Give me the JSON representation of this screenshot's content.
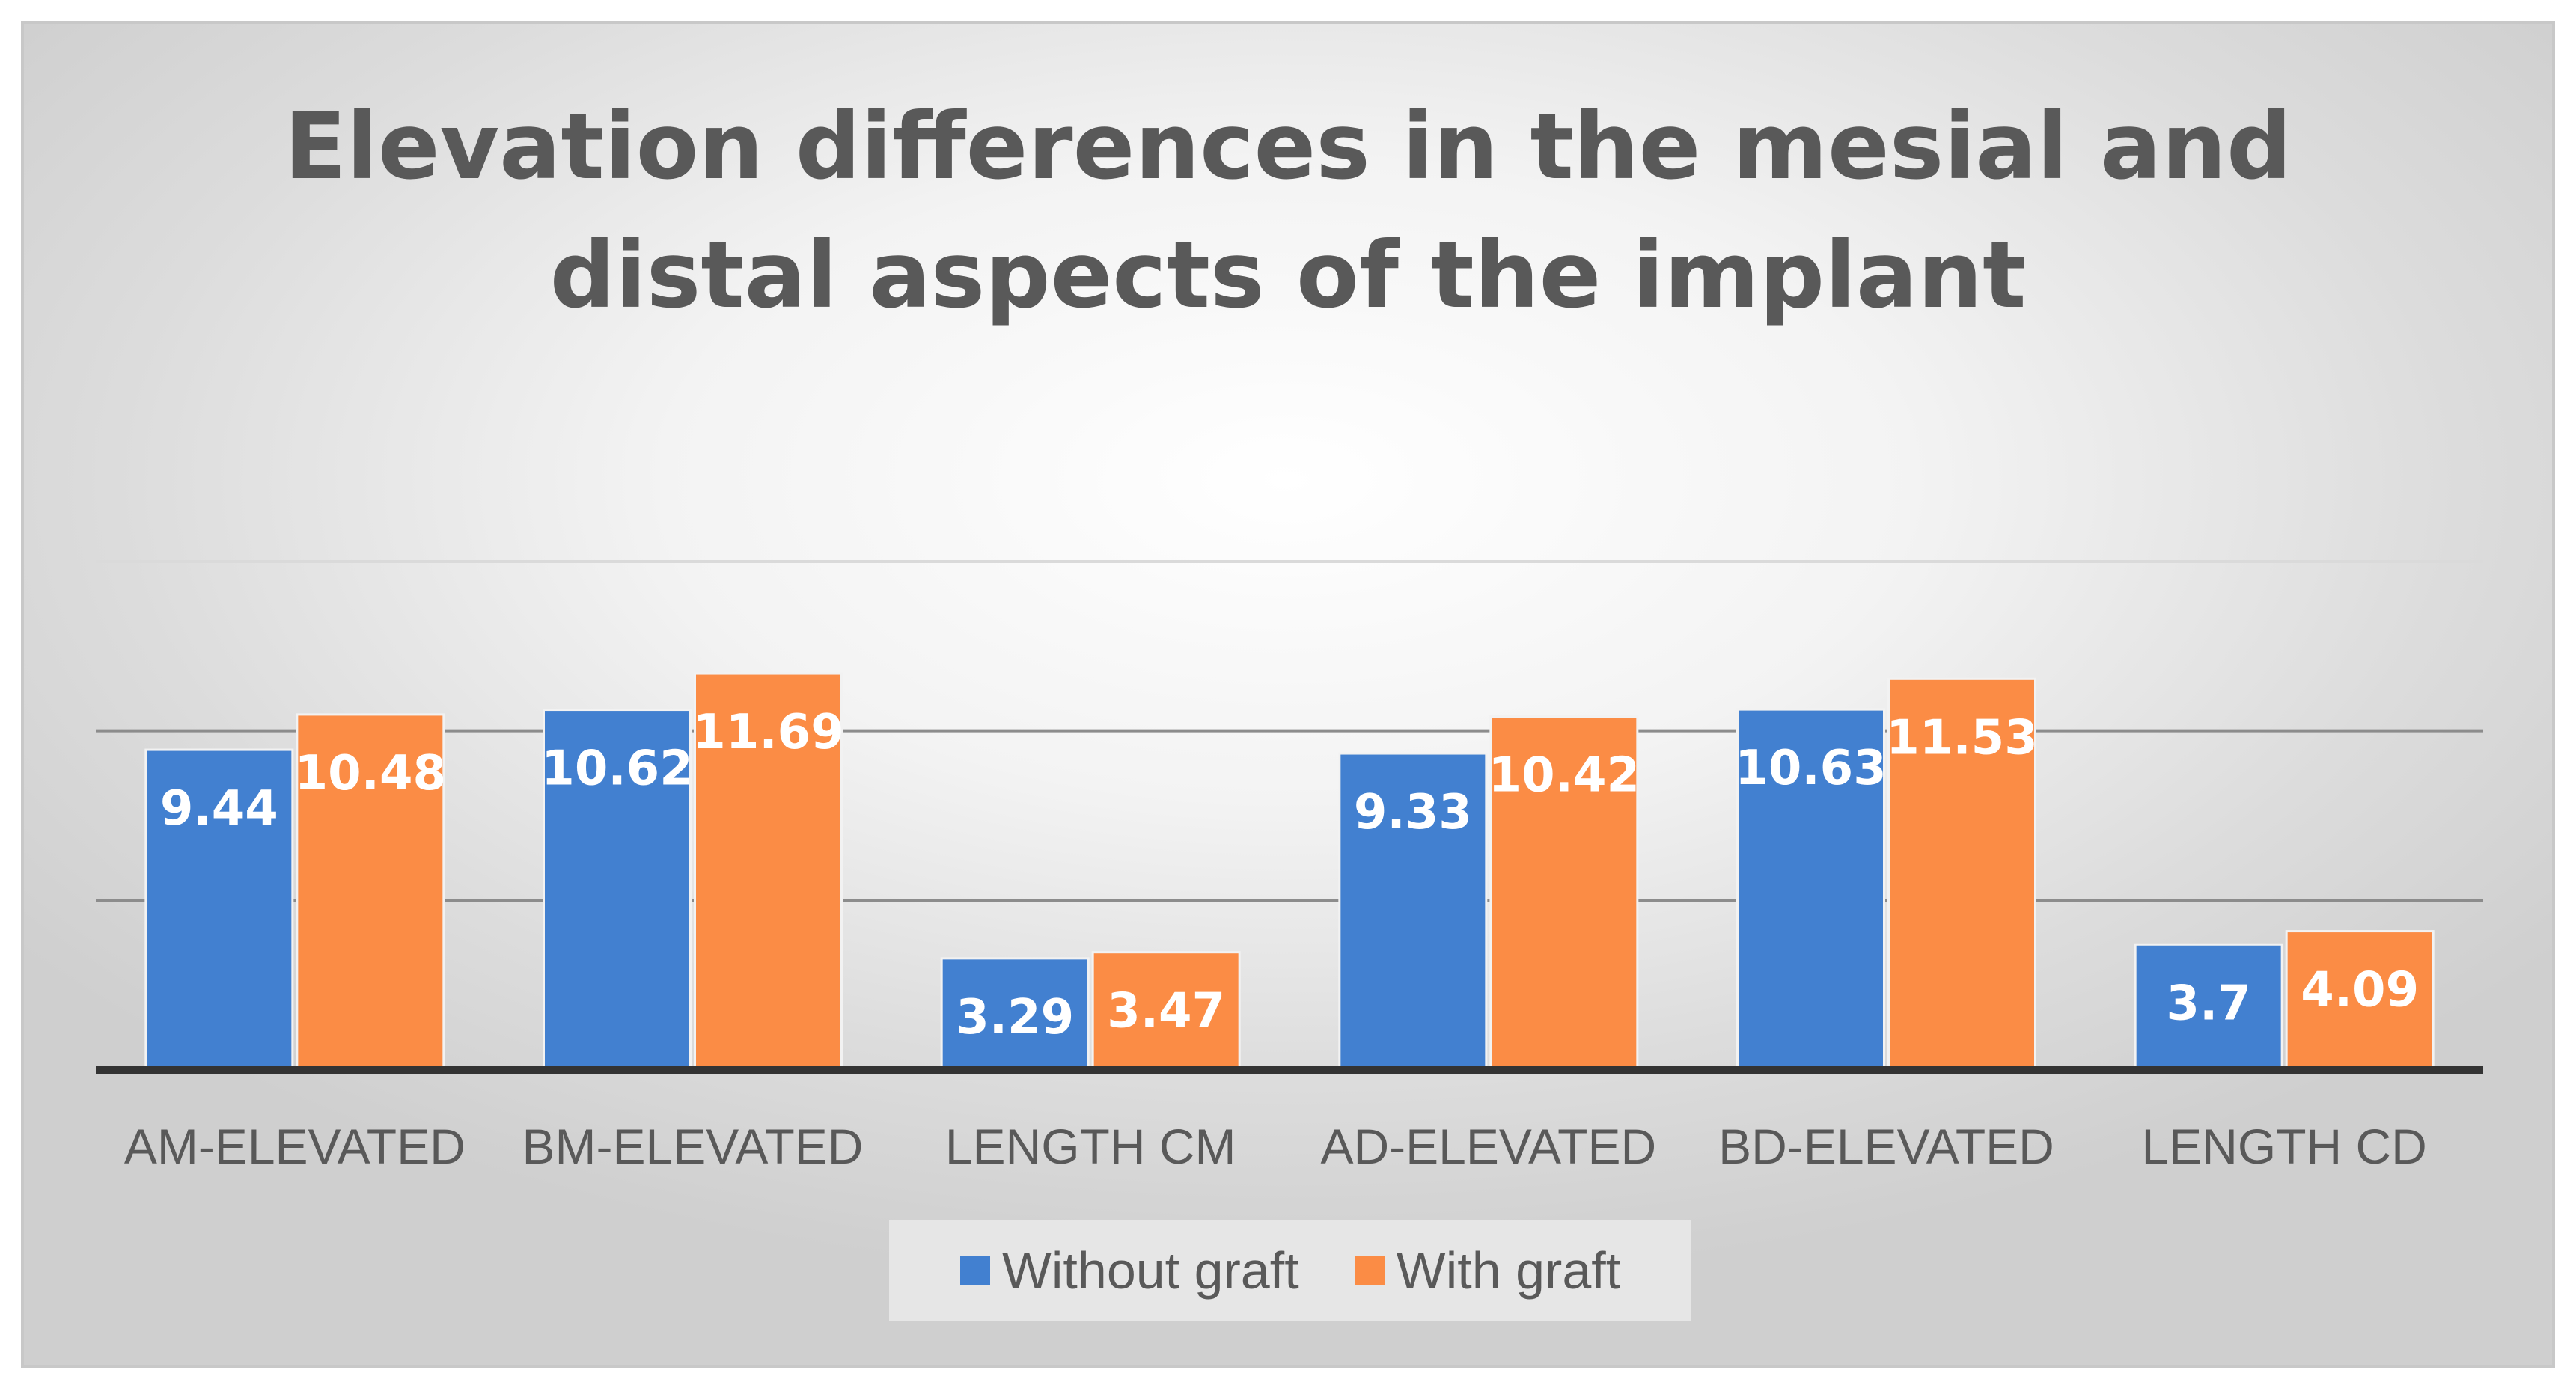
{
  "chart_data": {
    "type": "bar",
    "title_lines": [
      "Elevation differences in the mesial and",
      "distal aspects of the implant"
    ],
    "categories": [
      "AM-ELEVATED",
      "BM-ELEVATED",
      "LENGTH CM",
      "AD-ELEVATED",
      "BD-ELEVATED",
      "LENGTH CD"
    ],
    "series": [
      {
        "name": "Without graft",
        "color": "#4280d0",
        "values": [
          9.44,
          10.62,
          3.29,
          9.33,
          10.63,
          3.7
        ],
        "labels": [
          "9.44",
          "10.62",
          "3.29",
          "9.33",
          "10.63",
          "3.7"
        ]
      },
      {
        "name": "With graft",
        "color": "#fb8c45",
        "values": [
          10.48,
          11.69,
          3.47,
          10.42,
          11.53,
          4.09
        ],
        "labels": [
          "10.48",
          "11.69",
          "3.47",
          "10.42",
          "11.53",
          "4.09"
        ]
      }
    ],
    "ylim": [
      0,
      15
    ],
    "grid_values": [
      5,
      10,
      15
    ],
    "y_axis_labels_shown": false,
    "legend_position": "bottom"
  }
}
